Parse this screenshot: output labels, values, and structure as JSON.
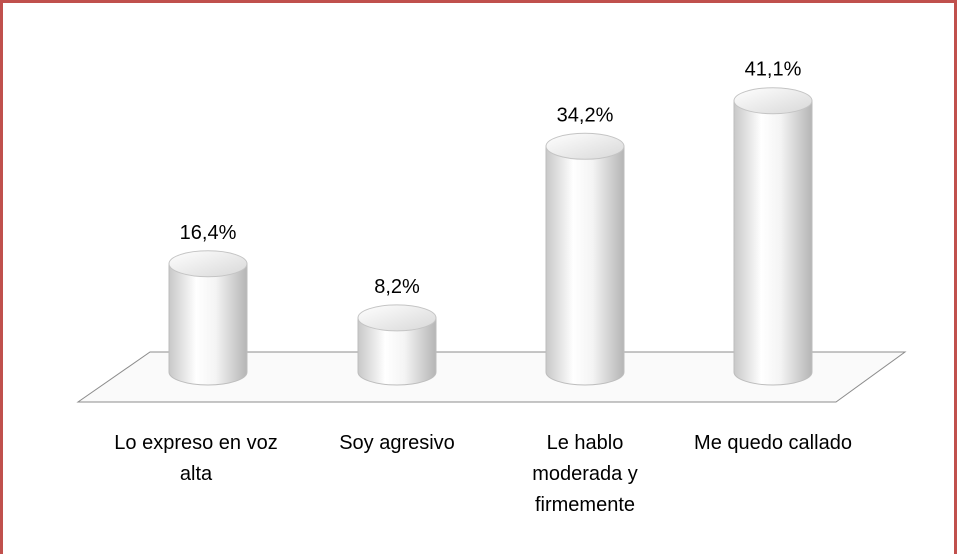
{
  "chart_data": {
    "type": "bar",
    "categories": [
      "Lo expreso en voz alta",
      "Soy agresivo",
      "Le hablo moderada y firmemente",
      "Me quedo callado"
    ],
    "values": [
      16.4,
      8.2,
      34.2,
      41.1
    ],
    "value_labels": [
      "16,4%",
      "8,2%",
      "34,2%",
      "41,1%"
    ],
    "color": "#ffffff"
  }
}
